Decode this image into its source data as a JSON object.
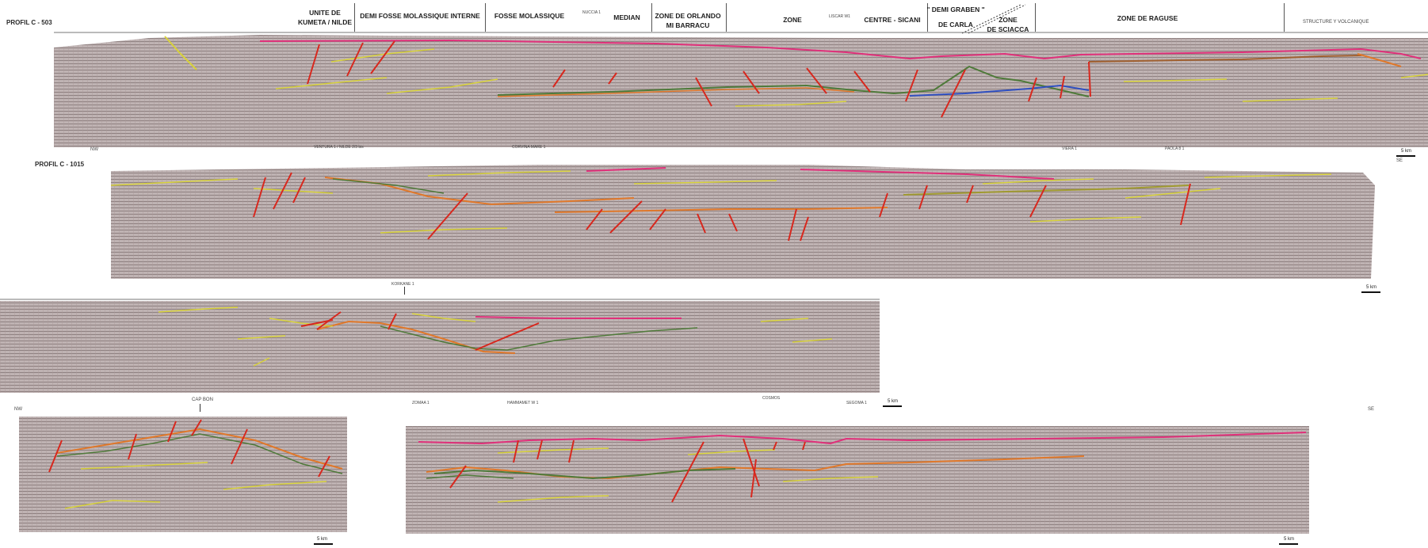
{
  "profiles": {
    "p1": {
      "name": "PROFIL C - 503",
      "ends": [
        "NW",
        "SE"
      ],
      "scale": "5 km",
      "zones": [
        {
          "line1": "UNITE DE",
          "line2": "KUMETA / NILDE"
        },
        {
          "line1": "DEMI FOSSE MOLASSIQUE INTERNE",
          "line2": ""
        },
        {
          "line1": "FOSSE MOLASSIQUE",
          "line2": ""
        },
        {
          "line1": "MEDIAN",
          "line2": ""
        },
        {
          "line1": "ZONE DE ORLANDO",
          "line2": "MI BARRACU"
        },
        {
          "line1": "ZONE",
          "line2": ""
        },
        {
          "line1": "CENTRE - SICANI",
          "line2": ""
        },
        {
          "line1": "\" DEMI GRABEN \"",
          "line2": "DE CARLA"
        },
        {
          "line1": "ZONE",
          "line2": "DE SCIACCA"
        },
        {
          "line1": "ZONE DE RAGUSE",
          "line2": ""
        },
        {
          "line1": "STRUCTURE Y VOLCANIQUE",
          "line2": ""
        }
      ],
      "wells": [
        "NUCCIA 1",
        "LISCAR W1"
      ]
    },
    "p2": {
      "name": "PROFIL C - 1015",
      "ends": [
        "NW",
        "SE"
      ],
      "scale": "5 km",
      "wells": [
        "VENTURA 1 / NILDE 2/3 bis",
        "CORVINA MARE 1",
        "VIERA 1",
        "PAOLA 8 1"
      ]
    },
    "p3": {
      "wells": [
        "KORKANE 1"
      ],
      "scale": "5 km"
    },
    "p4": {
      "ends": [
        "NW"
      ],
      "wells": [
        "CAP BON"
      ],
      "scale": "5 km"
    },
    "p5": {
      "ends": [
        "SE"
      ],
      "wells": [
        "ZOMAA 1",
        "HAMMAMET W 1",
        "COSMOS",
        "SEGOMA 1"
      ],
      "scale": "5 km"
    }
  },
  "colors": {
    "paper": "#ffffff",
    "seismic_base": "#bfb3b3",
    "seismic_stripe": "#8f8181",
    "horizon_magenta": "#e0307a",
    "horizon_yellow": "#d8d23a",
    "horizon_orange": "#e0782a",
    "horizon_green": "#4f7a3a",
    "horizon_blue": "#2f4fc0",
    "fault_red": "#d8281e"
  }
}
